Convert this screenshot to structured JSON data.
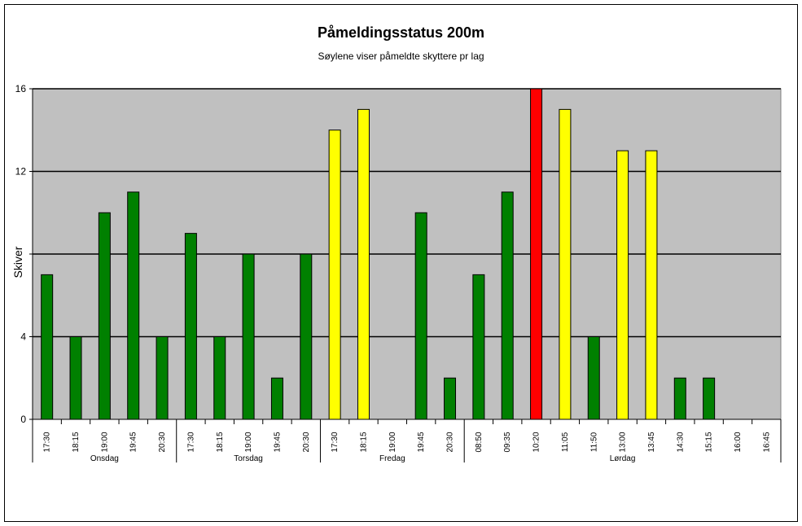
{
  "chart_data": {
    "type": "bar",
    "title": "Påmeldingsstatus 200m",
    "subtitle": "Søylene viser påmeldte skyttere pr lag",
    "ylabel": "Skiver",
    "ylim": [
      0,
      16
    ],
    "yticks": [
      0,
      4,
      8,
      12,
      16
    ],
    "ytick_labels": [
      "0",
      "4",
      "",
      "12",
      "16"
    ],
    "grid": true,
    "groups": [
      {
        "name": "Onsdag",
        "categories": [
          "17:30",
          "18:15",
          "19:00",
          "19:45",
          "20:30"
        ],
        "values": [
          7,
          4,
          10,
          11,
          4
        ],
        "colors": [
          "#008000",
          "#008000",
          "#008000",
          "#008000",
          "#008000"
        ]
      },
      {
        "name": "Torsdag",
        "categories": [
          "17:30",
          "18:15",
          "19:00",
          "19:45",
          "20:30"
        ],
        "values": [
          9,
          4,
          8,
          2,
          8
        ],
        "colors": [
          "#008000",
          "#008000",
          "#008000",
          "#008000",
          "#008000"
        ]
      },
      {
        "name": "Fredag",
        "categories": [
          "17:30",
          "18:15",
          "19:00",
          "19:45",
          "20:30"
        ],
        "values": [
          14,
          15,
          0,
          10,
          2
        ],
        "colors": [
          "#ffff00",
          "#ffff00",
          "#008000",
          "#008000",
          "#008000"
        ]
      },
      {
        "name": "Lørdag",
        "categories": [
          "08:50",
          "09:35",
          "10:20",
          "11:05",
          "11:50",
          "13:00",
          "13:45",
          "14:30",
          "15:15",
          "16:00",
          "16:45"
        ],
        "values": [
          7,
          11,
          16,
          15,
          4,
          13,
          13,
          2,
          2,
          0,
          0
        ],
        "colors": [
          "#008000",
          "#008000",
          "#ff0000",
          "#ffff00",
          "#008000",
          "#ffff00",
          "#ffff00",
          "#008000",
          "#008000",
          "#008000",
          "#008000"
        ]
      }
    ],
    "plot_background": "#c0c0c0"
  }
}
